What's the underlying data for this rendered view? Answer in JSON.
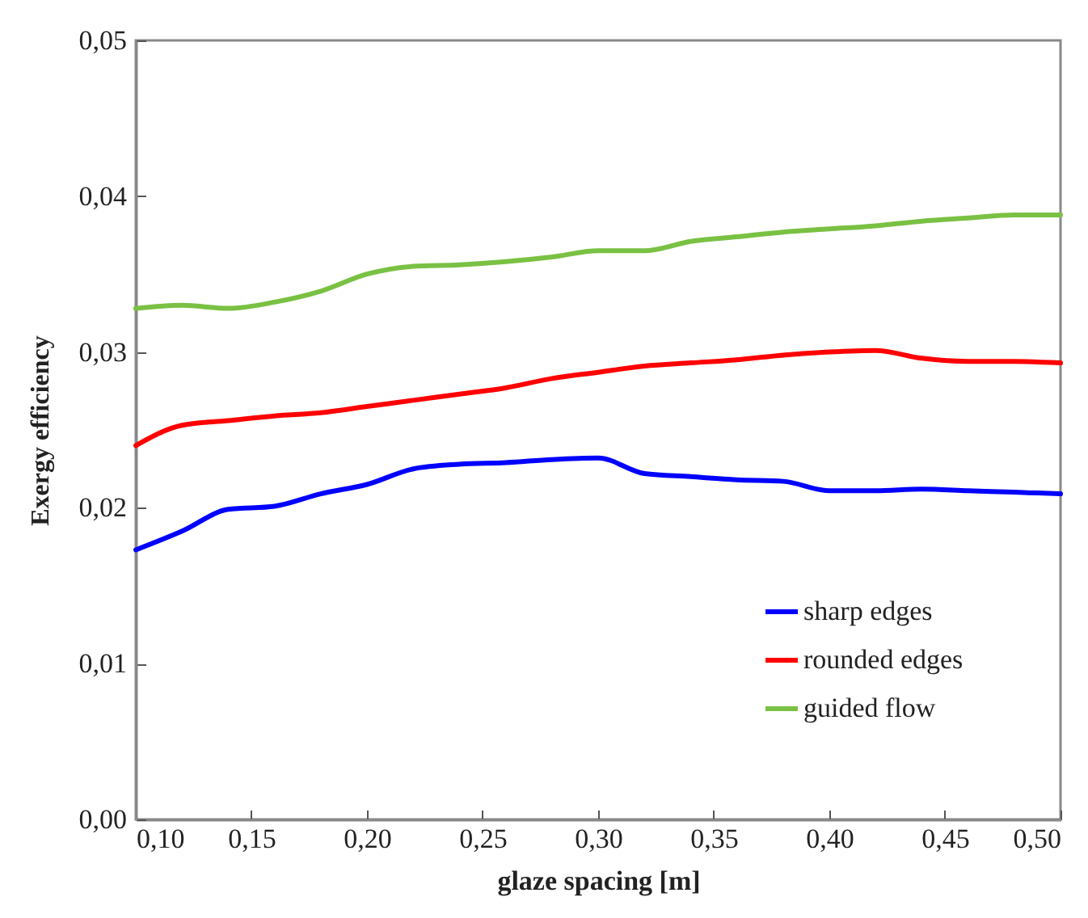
{
  "chart_data": {
    "type": "line",
    "xlabel": "glaze spacing [m]",
    "ylabel": "Exergy  efficiency",
    "x": [
      0.1,
      0.12,
      0.14,
      0.16,
      0.18,
      0.2,
      0.22,
      0.24,
      0.26,
      0.28,
      0.3,
      0.32,
      0.34,
      0.36,
      0.38,
      0.4,
      0.42,
      0.44,
      0.46,
      0.48,
      0.5
    ],
    "series": [
      {
        "name": "sharp edges",
        "color": "#0000ff",
        "values": [
          0.0173,
          0.0185,
          0.0199,
          0.0201,
          0.0209,
          0.0215,
          0.0225,
          0.0228,
          0.0229,
          0.0231,
          0.0232,
          0.0222,
          0.022,
          0.0218,
          0.0217,
          0.0211,
          0.0211,
          0.0212,
          0.0211,
          0.021,
          0.0209
        ]
      },
      {
        "name": "rounded edges",
        "color": "#ff0000",
        "values": [
          0.024,
          0.0253,
          0.0256,
          0.0259,
          0.0261,
          0.0265,
          0.0269,
          0.0273,
          0.0277,
          0.0283,
          0.0287,
          0.0291,
          0.0293,
          0.0295,
          0.0298,
          0.03,
          0.0301,
          0.0296,
          0.0294,
          0.0294,
          0.0293
        ]
      },
      {
        "name": "guided flow",
        "color": "#7ac143",
        "values": [
          0.0328,
          0.033,
          0.0328,
          0.0332,
          0.0339,
          0.035,
          0.0355,
          0.0356,
          0.0358,
          0.0361,
          0.0365,
          0.0365,
          0.0371,
          0.0374,
          0.0377,
          0.0379,
          0.0381,
          0.0384,
          0.0386,
          0.0388,
          0.0388
        ]
      }
    ],
    "xlim": [
      0.1,
      0.5
    ],
    "xticks": [
      {
        "value": 0.1,
        "label": "0,10"
      },
      {
        "value": 0.15,
        "label": "0,15"
      },
      {
        "value": 0.2,
        "label": "0,20"
      },
      {
        "value": 0.25,
        "label": "0,25"
      },
      {
        "value": 0.3,
        "label": "0,30"
      },
      {
        "value": 0.35,
        "label": "0,35"
      },
      {
        "value": 0.4,
        "label": "0,40"
      },
      {
        "value": 0.45,
        "label": "0,45"
      },
      {
        "value": 0.5,
        "label": "0,50"
      }
    ],
    "ylim": [
      0,
      0.05
    ],
    "yticks": [
      {
        "value": 0,
        "label": "0,00"
      },
      {
        "value": 0.01,
        "label": "0,01"
      },
      {
        "value": 0.02,
        "label": "0,02"
      },
      {
        "value": 0.03,
        "label": "0,03"
      },
      {
        "value": 0.04,
        "label": "0,04"
      },
      {
        "value": 0.05,
        "label": "0,05"
      }
    ],
    "legend": "bottom right",
    "grid": false,
    "marker": "none",
    "line_style": "solid"
  }
}
